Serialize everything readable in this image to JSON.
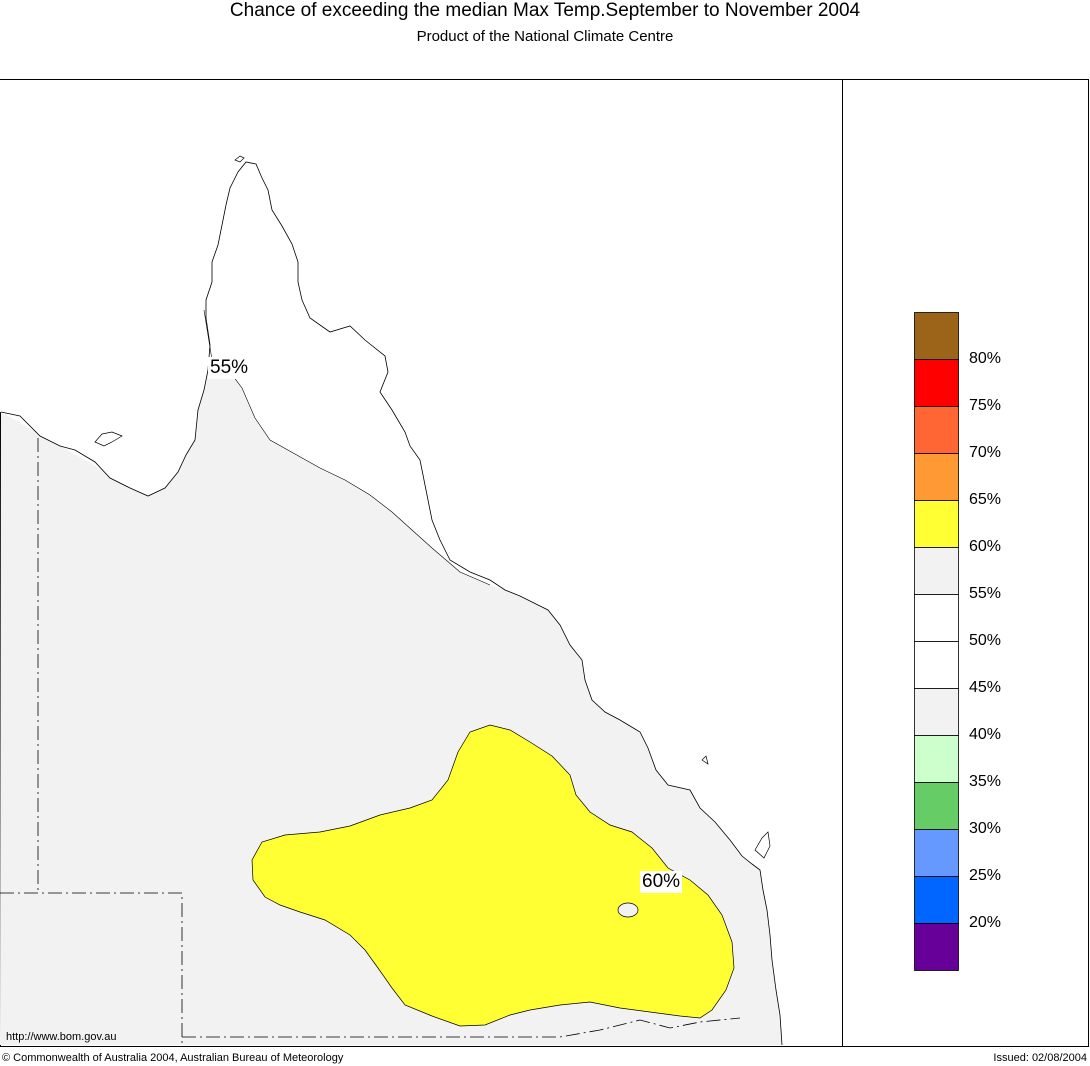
{
  "header": {
    "title": "Chance of exceeding the median Max Temp.September to November 2004",
    "subtitle": "Product of the National Climate Centre"
  },
  "map": {
    "contour_labels": [
      "55%",
      "60%"
    ],
    "region_colors": {
      "background": "#f2f2f2",
      "fifty_to_fiftyfive": "#ffffff",
      "sixty_to_sixtyfive": "#ffff33"
    },
    "url": "http://www.bom.gov.au"
  },
  "legend": {
    "labels": [
      "80%",
      "75%",
      "70%",
      "65%",
      "60%",
      "55%",
      "50%",
      "45%",
      "40%",
      "35%",
      "30%",
      "25%",
      "20%"
    ],
    "colors": [
      "#9c6419",
      "#ff0000",
      "#ff6633",
      "#ff9933",
      "#ffff33",
      "#f2f2f2",
      "#ffffff",
      "#ffffff",
      "#f2f2f2",
      "#ccffcc",
      "#66cc66",
      "#6699ff",
      "#0066ff",
      "#660099"
    ]
  },
  "footer": {
    "copyright": "© Commonwealth of Australia 2004, Australian Bureau of Meteorology",
    "issued": "Issued: 02/08/2004"
  }
}
